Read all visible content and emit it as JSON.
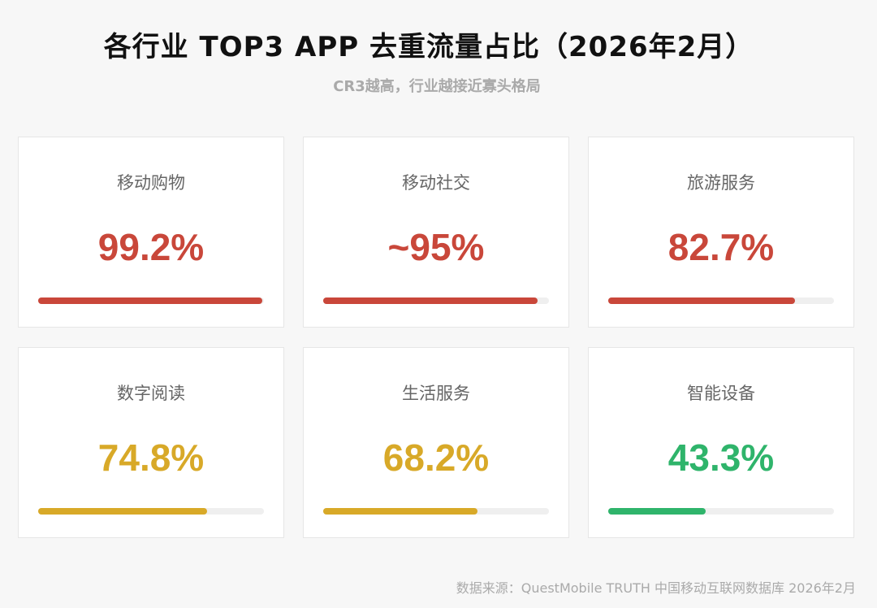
{
  "header": {
    "title": "各行业 TOP3 APP 去重流量占比（2026年2月）",
    "subtitle": "CR3越高，行业越接近寡头格局"
  },
  "colors": {
    "red": "#c9473a",
    "yellow": "#d8a928",
    "green": "#2fb46b",
    "track": "#efefef"
  },
  "cards": [
    {
      "label": "移动购物",
      "value": "99.2%",
      "percent": 99.2,
      "color": "#c9473a"
    },
    {
      "label": "移动社交",
      "value": "~95%",
      "percent": 95,
      "color": "#c9473a"
    },
    {
      "label": "旅游服务",
      "value": "82.7%",
      "percent": 82.7,
      "color": "#c9473a"
    },
    {
      "label": "数字阅读",
      "value": "74.8%",
      "percent": 74.8,
      "color": "#d8a928"
    },
    {
      "label": "生活服务",
      "value": "68.2%",
      "percent": 68.2,
      "color": "#d8a928"
    },
    {
      "label": "智能设备",
      "value": "43.3%",
      "percent": 43.3,
      "color": "#2fb46b"
    }
  ],
  "footer": {
    "source": "数据来源：QuestMobile TRUTH 中国移动互联网数据库 2026年2月"
  }
}
